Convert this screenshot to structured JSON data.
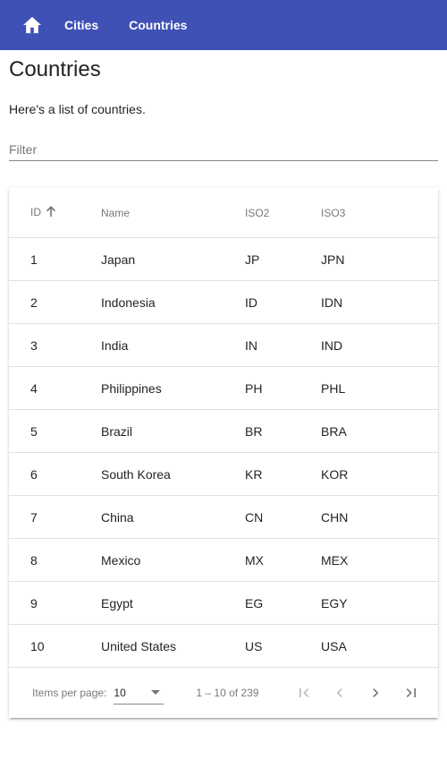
{
  "nav": {
    "home_icon": "home-icon",
    "links": [
      "Cities",
      "Countries"
    ]
  },
  "page": {
    "title": "Countries",
    "description": "Here's a list of countries."
  },
  "filter": {
    "placeholder": "Filter",
    "value": ""
  },
  "table": {
    "columns": [
      "ID",
      "Name",
      "ISO2",
      "ISO3"
    ],
    "sort": {
      "column": "ID",
      "direction": "ascending"
    },
    "rows": [
      [
        "1",
        "Japan",
        "JP",
        "JPN"
      ],
      [
        "2",
        "Indonesia",
        "ID",
        "IDN"
      ],
      [
        "3",
        "India",
        "IN",
        "IND"
      ],
      [
        "4",
        "Philippines",
        "PH",
        "PHL"
      ],
      [
        "5",
        "Brazil",
        "BR",
        "BRA"
      ],
      [
        "6",
        "South Korea",
        "KR",
        "KOR"
      ],
      [
        "7",
        "China",
        "CN",
        "CHN"
      ],
      [
        "8",
        "Mexico",
        "MX",
        "MEX"
      ],
      [
        "9",
        "Egypt",
        "EG",
        "EGY"
      ],
      [
        "10",
        "United States",
        "US",
        "USA"
      ]
    ]
  },
  "paginator": {
    "items_per_page_label": "Items per page:",
    "items_per_page": "10",
    "range_label": "1 – 10 of 239"
  },
  "colors": {
    "toolbar": "#3f51b5",
    "toolbar_text": "#ffffff"
  }
}
